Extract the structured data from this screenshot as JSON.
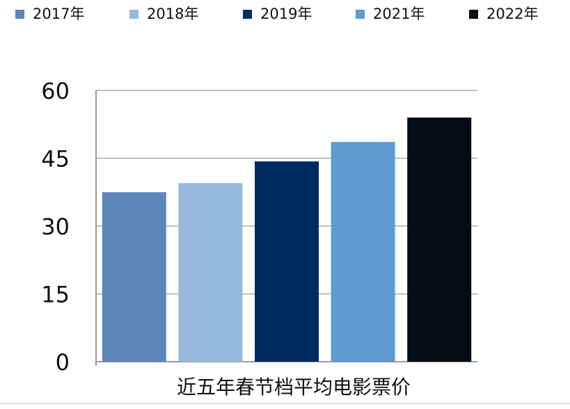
{
  "chart_data": {
    "type": "bar",
    "categories": [
      "2017年",
      "2018年",
      "2019年",
      "2021年",
      "2022年"
    ],
    "values": [
      37.5,
      39.5,
      44.3,
      48.6,
      54.0
    ],
    "colors": [
      "#5f86b8",
      "#97b9dc",
      "#002a60",
      "#5e9bd0",
      "#050b14"
    ],
    "title": "",
    "xlabel": "近五年春节档平均电影票价",
    "ylabel": "",
    "ylim": [
      0,
      60
    ],
    "yticks": [
      0,
      15,
      30,
      45,
      60
    ],
    "grid": true,
    "legend_position": "top"
  }
}
